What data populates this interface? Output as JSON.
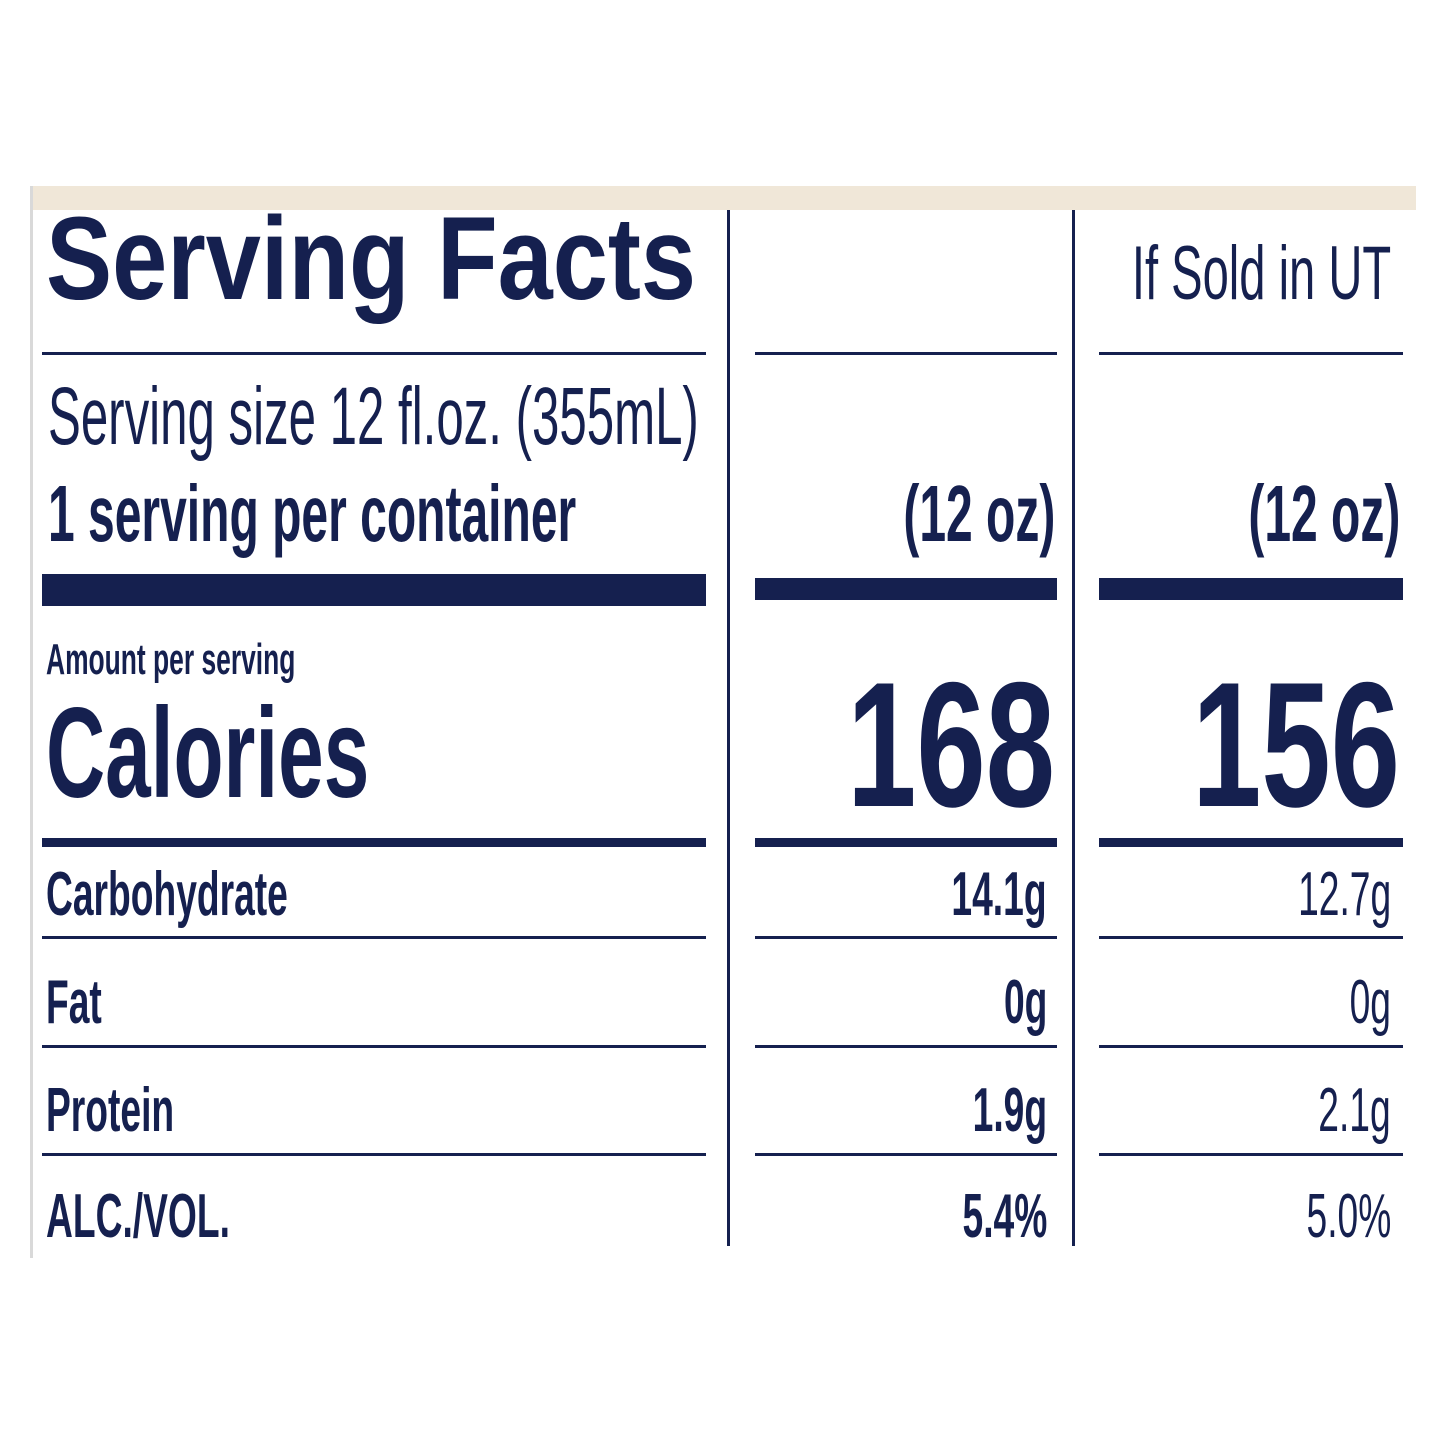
{
  "title": "Serving Facts",
  "column_header_ut": "If Sold in UT",
  "serving_size": "Serving size 12 fl.oz. (355mL)",
  "servings_per_container": "1 serving per container",
  "columns": [
    {
      "size": "(12 oz)",
      "calories": "168"
    },
    {
      "size": "(12 oz)",
      "calories": "156"
    }
  ],
  "amount_per_serving": "Amount per serving",
  "calories_label": "Calories",
  "nutrients": [
    {
      "label": "Carbohydrate",
      "col1": "14.1g",
      "col2": "12.7g"
    },
    {
      "label": "Fat",
      "col1": "0g",
      "col2": "0g"
    },
    {
      "label": "Protein",
      "col1": "1.9g",
      "col2": "2.1g"
    },
    {
      "label": "ALC./VOL.",
      "col1": "5.4%",
      "col2": "5.0%"
    }
  ],
  "colors": {
    "ink": "#15204f",
    "band": "#f0e7d8"
  }
}
